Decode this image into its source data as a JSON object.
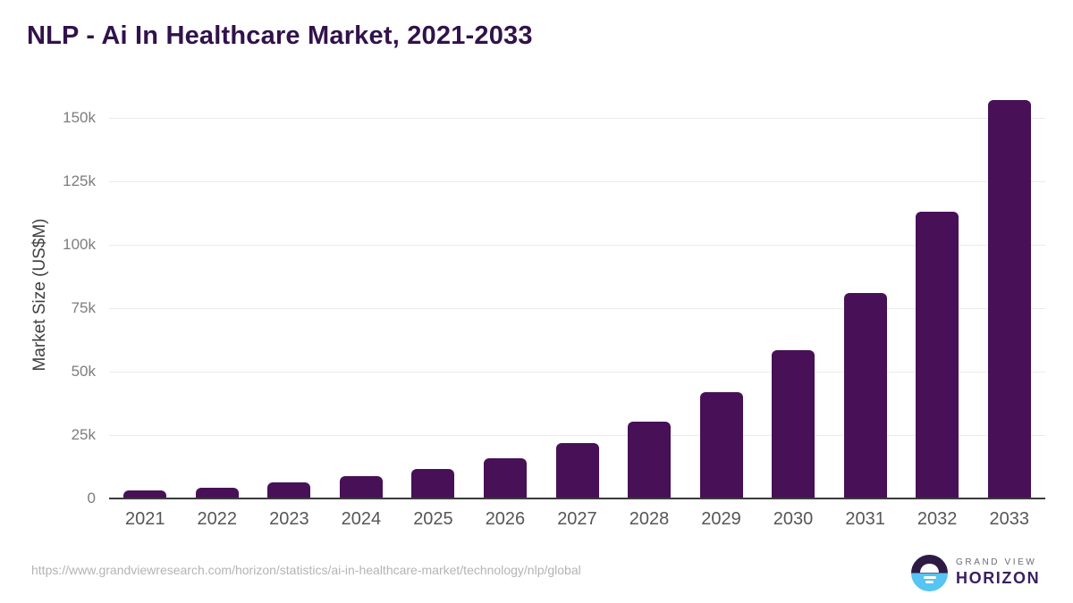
{
  "chart_data": {
    "type": "bar",
    "title": "NLP - Ai In Healthcare Market, 2021-2033",
    "categories": [
      "2021",
      "2022",
      "2023",
      "2024",
      "2025",
      "2026",
      "2027",
      "2028",
      "2029",
      "2030",
      "2031",
      "2032",
      "2033"
    ],
    "values": [
      3200,
      4200,
      6300,
      8800,
      11600,
      15800,
      21800,
      30300,
      41900,
      58500,
      81000,
      113000,
      157000
    ],
    "xlabel": "",
    "ylabel": "Market Size (US$M)",
    "ylim": [
      0,
      161000
    ],
    "yticks": [
      {
        "value": 0,
        "label": "0"
      },
      {
        "value": 25000,
        "label": "25k"
      },
      {
        "value": 50000,
        "label": "50k"
      },
      {
        "value": 75000,
        "label": "75k"
      },
      {
        "value": 100000,
        "label": "100k"
      },
      {
        "value": 125000,
        "label": "125k"
      },
      {
        "value": 150000,
        "label": "150k"
      }
    ],
    "grid": "horizontal-only",
    "legend": "none",
    "bar_color": "#471057"
  },
  "footer": {
    "source_url": "https://www.grandviewresearch.com/horizon/statistics/ai-in-healthcare-market/technology/nlp/global",
    "logo": {
      "top_line": "GRAND VIEW",
      "bottom_line": "HORIZON"
    }
  },
  "colors": {
    "title": "#31124b",
    "bar": "#471057",
    "gridline": "#ebebeb",
    "axis_line": "#3b3b3b",
    "tick_label": "#7d7d7d",
    "x_label": "#565656",
    "y_axis_title": "#3f3f3f",
    "source_url": "#b4b4b4",
    "logo_dark": "#2d1b45",
    "logo_blue": "#57c4f2",
    "logo_gray_text": "#6b6b74",
    "logo_purple_text": "#3a2060"
  }
}
